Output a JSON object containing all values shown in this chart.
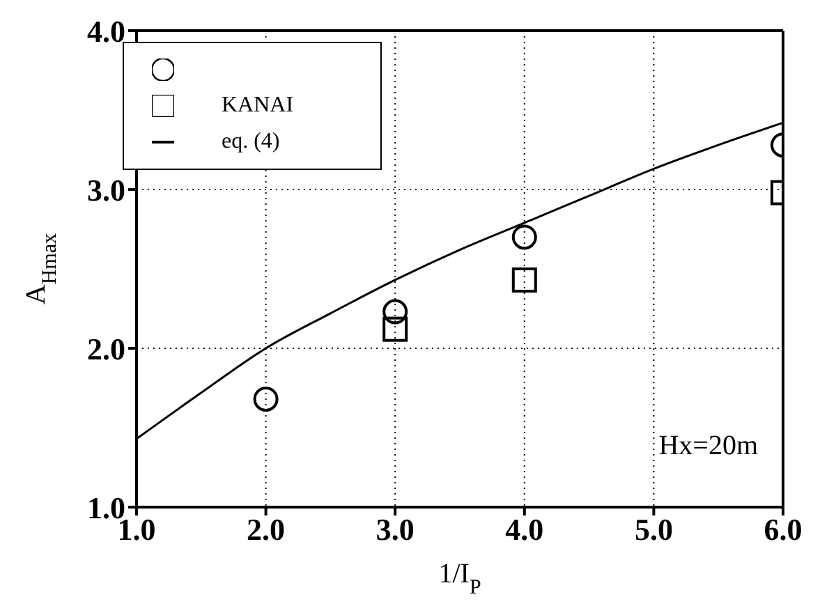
{
  "chart_data": {
    "type": "scatter",
    "xlabel": "1/I$_{P}$",
    "ylabel": "A$_{Hmax}$",
    "xlim": [
      1,
      6
    ],
    "ylim": [
      1,
      4
    ],
    "xticks": [
      {
        "value": 1,
        "label": "1.0"
      },
      {
        "value": 2,
        "label": "2.0"
      },
      {
        "value": 3,
        "label": "3.0"
      },
      {
        "value": 4,
        "label": "4.0"
      },
      {
        "value": 5,
        "label": "5.0"
      },
      {
        "value": 6,
        "label": "6.0"
      }
    ],
    "yticks": [
      {
        "value": 1,
        "label": "1.0"
      },
      {
        "value": 2,
        "label": "2.0"
      },
      {
        "value": 3,
        "label": "3.0"
      },
      {
        "value": 4,
        "label": "4.0"
      }
    ],
    "grid": true,
    "legend": "top left",
    "series": [
      {
        "marker": "circle",
        "color": "#000000",
        "x": [
          2,
          3,
          4,
          6
        ],
        "values": [
          1.68,
          2.23,
          2.7,
          3.28
        ]
      },
      {
        "name": "KANAI",
        "marker": "square",
        "color": "#000000",
        "x": [
          3,
          4,
          6
        ],
        "values": [
          2.12,
          2.43,
          2.98
        ]
      },
      {
        "name": "eq. (4)",
        "type": "line",
        "marker": "none",
        "line_style": "solid",
        "color": "#000000",
        "x": [
          1,
          1.5,
          2,
          2.5,
          3,
          3.5,
          4,
          4.5,
          5,
          5.5,
          6
        ],
        "values": [
          1.43,
          1.72,
          2.0,
          2.22,
          2.43,
          2.62,
          2.79,
          2.96,
          3.13,
          3.28,
          3.42
        ]
      }
    ],
    "annotations": [
      "Hx=20m"
    ]
  }
}
